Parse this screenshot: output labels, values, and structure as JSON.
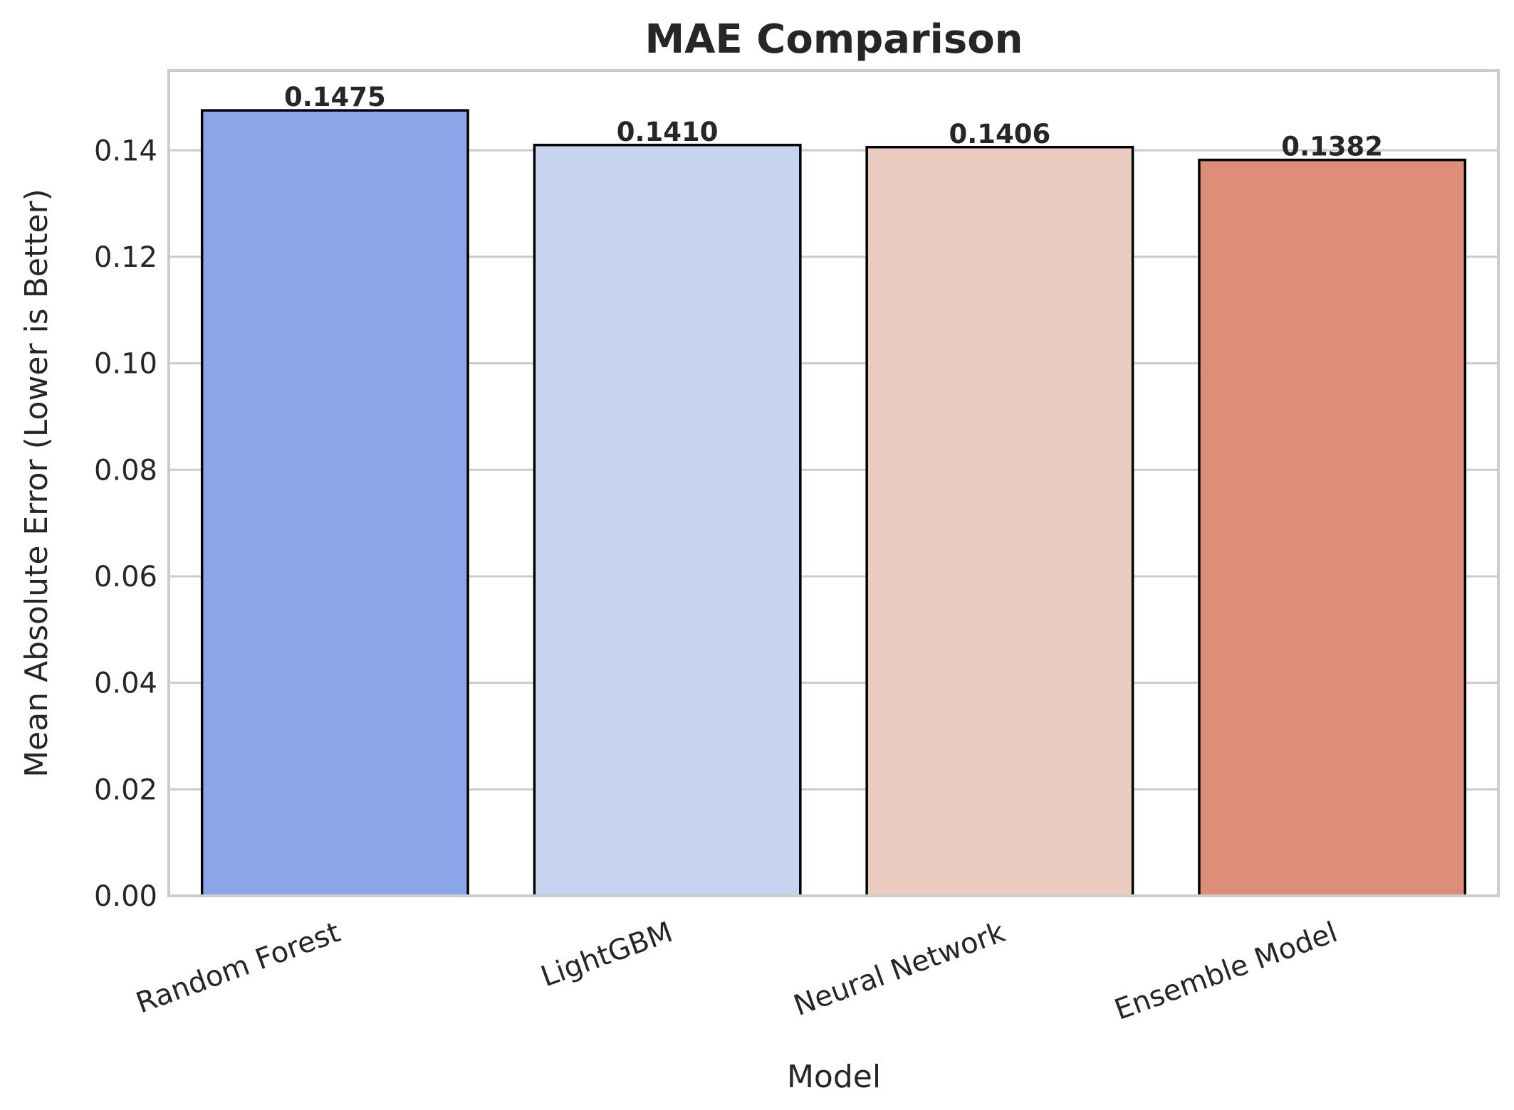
{
  "chart_data": {
    "type": "bar",
    "title": "MAE Comparison",
    "xlabel": "Model",
    "ylabel": "Mean Absolute Error (Lower is Better)",
    "categories": [
      "Random Forest",
      "LightGBM",
      "Neural Network",
      "Ensemble Model"
    ],
    "values": [
      0.1475,
      0.141,
      0.1406,
      0.1382
    ],
    "value_labels": [
      "0.1475",
      "0.1410",
      "0.1406",
      "0.1382"
    ],
    "colors": [
      "#8aa5e8",
      "#c6d4ef",
      "#eacdc0",
      "#dc8e78"
    ],
    "ylim": [
      0,
      0.155
    ],
    "yticks": [
      0.0,
      0.02,
      0.04,
      0.06,
      0.08,
      0.1,
      0.12,
      0.14
    ],
    "ytick_labels": [
      "0.00",
      "0.02",
      "0.04",
      "0.06",
      "0.08",
      "0.10",
      "0.12",
      "0.14"
    ],
    "grid": "horizontal",
    "xtick_rotation_deg": 20,
    "legend": "none"
  }
}
